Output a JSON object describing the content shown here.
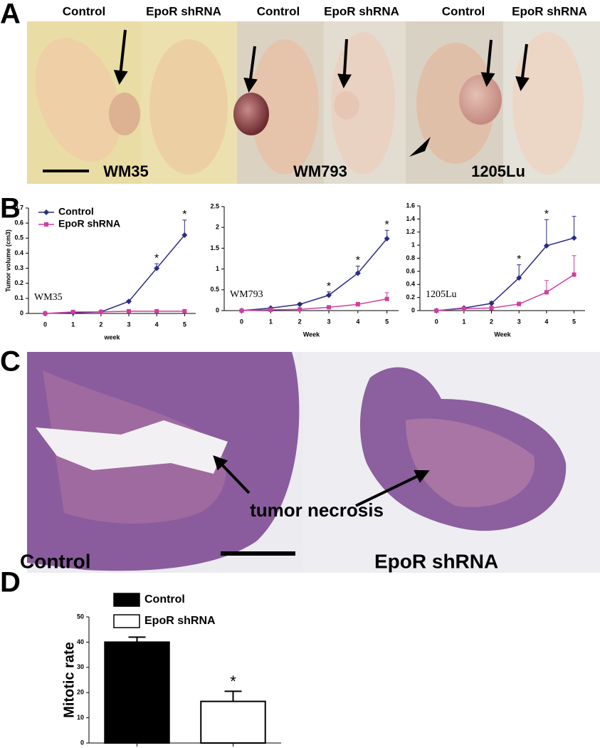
{
  "panel_labels": [
    "A",
    "B",
    "C",
    "D"
  ],
  "panel_a": {
    "labels": [
      "Control",
      "EpoR shRNA",
      "Control",
      "EpoR shRNA",
      "Control",
      "EpoR shRNA"
    ],
    "cell_lines": [
      "WM35",
      "WM793",
      "1205Lu"
    ]
  },
  "panel_c": {
    "annotation": "tumor necrosis",
    "labels": [
      "Control",
      "EpoR shRNA"
    ]
  },
  "chart_data": [
    {
      "type": "line",
      "label": "WM35",
      "x_label": "week",
      "y_label": "Tumor volume (cm3)",
      "legend": "upper left",
      "x": [
        0,
        1,
        2,
        3,
        4,
        5
      ],
      "xlim": [
        -0.6,
        5.4
      ],
      "xticks": [
        0,
        1,
        2,
        3,
        4,
        5
      ],
      "ylim": [
        0,
        0.7
      ],
      "yticks": [
        0,
        0.1,
        0.2,
        0.3,
        0.4,
        0.5,
        0.6,
        0.7
      ],
      "series": [
        {
          "name": "Control",
          "color": "#2b2b86",
          "marker": "diamond",
          "values": [
            0,
            0.005,
            0.01,
            0.08,
            0.3,
            0.52
          ],
          "errors": [
            0,
            0,
            0.01,
            0.005,
            0.03,
            0.1
          ],
          "significance": [
            null,
            null,
            null,
            null,
            "*",
            "*"
          ]
        },
        {
          "name": "EpoR shRNA",
          "color": "#cf3f9f",
          "marker": "square",
          "values": [
            0,
            0.01,
            0.01,
            0.015,
            0.015,
            0.015
          ],
          "errors": [
            0,
            0.005,
            0.005,
            0.005,
            0.005,
            0.005
          ]
        }
      ]
    },
    {
      "type": "line",
      "label": "WM793",
      "x_label": "Week",
      "x": [
        0,
        1,
        2,
        3,
        4,
        5
      ],
      "xlim": [
        -0.6,
        5.4
      ],
      "xticks": [
        0,
        1,
        2,
        3,
        4,
        5
      ],
      "ylim": [
        0,
        2.5
      ],
      "yticks": [
        0,
        0.5,
        1,
        1.5,
        2,
        2.5
      ],
      "series": [
        {
          "name": "Control",
          "color": "#2b2b86",
          "marker": "diamond",
          "values": [
            0,
            0.06,
            0.15,
            0.37,
            0.9,
            1.73
          ],
          "errors": [
            0,
            0.02,
            0.03,
            0.08,
            0.17,
            0.2
          ],
          "significance": [
            null,
            null,
            null,
            "*",
            "*",
            "*"
          ]
        },
        {
          "name": "EpoR shRNA",
          "color": "#cf3f9f",
          "marker": "square",
          "values": [
            0,
            0.02,
            0.03,
            0.08,
            0.15,
            0.28
          ],
          "errors": [
            0,
            0.01,
            0.01,
            0.02,
            0.05,
            0.15
          ]
        }
      ]
    },
    {
      "type": "line",
      "label": "1205Lu",
      "x_label": "Week",
      "x": [
        0,
        1,
        2,
        3,
        4,
        5
      ],
      "xlim": [
        -0.6,
        5.4
      ],
      "xticks": [
        0,
        1,
        2,
        3,
        4,
        5
      ],
      "ylim": [
        0,
        1.6
      ],
      "yticks": [
        0,
        0.2,
        0.4,
        0.6,
        0.8,
        1,
        1.2,
        1.4,
        1.6
      ],
      "series": [
        {
          "name": "Control",
          "color": "#2b2b86",
          "marker": "diamond",
          "values": [
            0,
            0.04,
            0.11,
            0.5,
            0.99,
            1.11
          ],
          "errors": [
            0,
            0.01,
            0.03,
            0.2,
            0.4,
            0.33
          ],
          "significance": [
            null,
            null,
            null,
            "*",
            "*",
            null
          ]
        },
        {
          "name": "EpoR shRNA",
          "color": "#cf3f9f",
          "marker": "square",
          "values": [
            0,
            0.03,
            0.04,
            0.1,
            0.28,
            0.55
          ],
          "errors": [
            0,
            0.01,
            0.01,
            0.03,
            0.18,
            0.29
          ]
        }
      ]
    },
    {
      "type": "bar",
      "y_label": "Mitotic rate",
      "legend": "upper left",
      "ylim": [
        0,
        50
      ],
      "yticks": [
        0,
        10,
        20,
        30,
        40,
        50
      ],
      "series": [
        {
          "name": "Control",
          "color": "#000000",
          "values": [
            40
          ],
          "errors": [
            2
          ]
        },
        {
          "name": "EpoR shRNA",
          "color": "#ffffff",
          "values": [
            16.5
          ],
          "errors": [
            4
          ],
          "significance": [
            "*"
          ]
        }
      ]
    }
  ]
}
